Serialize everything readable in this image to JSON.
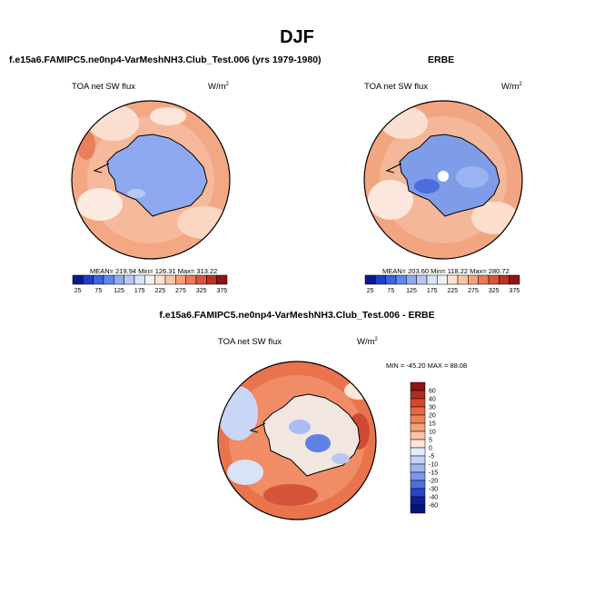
{
  "page": {
    "title": "DJF",
    "main_title": "f.e15a6.FAMIPC5.ne0np4-VarMeshNH3.Club_Test.006 - ERBE",
    "colors": {
      "ocean_warm": "#f0a07c",
      "ice_blue": "#8fa6ef",
      "text": "#000000"
    }
  },
  "chart_data": [
    {
      "type": "heatmap",
      "projection": "south-polar-stereographic",
      "subtitle": "f.e15a6.FAMIPC5.ne0np4-VarMeshNH3.Club_Test.006 (yrs 1979-1980)",
      "left_label": "TOA net SW flux",
      "units": "W/m",
      "units_sup": "2",
      "stats": {
        "mean": 219.94,
        "min": 126.31,
        "max": 313.22
      },
      "stats_text": "MEAN= 219.94   Min= 126.31   Max= 313.22",
      "colorbar": {
        "levels": [
          25,
          50,
          75,
          100,
          125,
          150,
          175,
          200,
          225,
          250,
          275,
          300,
          325,
          350,
          375
        ],
        "tick_labels": [
          "25",
          "75",
          "125",
          "175",
          "225",
          "275",
          "325",
          "375"
        ],
        "colors": [
          "#0a1a8c",
          "#1f3fc6",
          "#3a63e0",
          "#5d87ee",
          "#8eaaf1",
          "#b6c8f5",
          "#d8e4fa",
          "#f2f2f2",
          "#fde0cf",
          "#fbc3a6",
          "#f5a07b",
          "#ea7a55",
          "#d9543a",
          "#b83225",
          "#8c1414"
        ]
      }
    },
    {
      "type": "heatmap",
      "projection": "south-polar-stereographic",
      "subtitle": "ERBE",
      "left_label": "TOA net SW flux",
      "units": "W/m",
      "units_sup": "2",
      "stats": {
        "mean": 203.6,
        "min": 118.22,
        "max": 280.72
      },
      "stats_text": "MEAN= 203.60   Min= 118.22   Max= 280.72",
      "colorbar": {
        "levels": [
          25,
          50,
          75,
          100,
          125,
          150,
          175,
          200,
          225,
          250,
          275,
          300,
          325,
          350,
          375
        ],
        "tick_labels": [
          "25",
          "75",
          "125",
          "175",
          "225",
          "275",
          "325",
          "375"
        ],
        "colors": [
          "#0a1a8c",
          "#1f3fc6",
          "#3a63e0",
          "#5d87ee",
          "#8eaaf1",
          "#b6c8f5",
          "#d8e4fa",
          "#f2f2f2",
          "#fde0cf",
          "#fbc3a6",
          "#f5a07b",
          "#ea7a55",
          "#d9543a",
          "#b83225",
          "#8c1414"
        ]
      }
    },
    {
      "type": "heatmap",
      "projection": "south-polar-stereographic",
      "subtitle": "f.e15a6.FAMIPC5.ne0np4-VarMeshNH3.Club_Test.006 - ERBE",
      "left_label": "TOA net SW flux",
      "units": "W/m",
      "units_sup": "2",
      "stats": {
        "min": -45.2,
        "max": 88.08
      },
      "stats_text": "MIN = -45.20  MAX =  88.08",
      "colorbar": {
        "tick_labels": [
          "60",
          "40",
          "30",
          "20",
          "15",
          "10",
          "5",
          "0",
          "-5",
          "-10",
          "-15",
          "-20",
          "-30",
          "-40",
          "-60"
        ],
        "colors": [
          "#8c1414",
          "#b32a1f",
          "#d24a30",
          "#e5683f",
          "#ef8257",
          "#f5a07b",
          "#fbc3a6",
          "#fde6d6",
          "#e4ecfb",
          "#c3d3f7",
          "#9fb6f1",
          "#7a96ea",
          "#4f6fe0",
          "#2645c8",
          "#0d1f9c",
          "#081477"
        ]
      }
    }
  ]
}
